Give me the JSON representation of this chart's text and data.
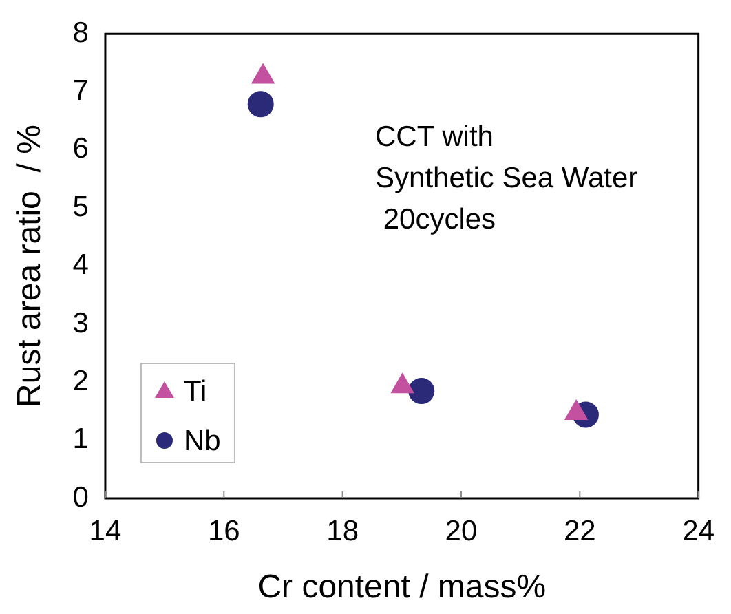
{
  "chart_data": {
    "type": "scatter",
    "xlabel": "Cr content / mass%",
    "ylabel": "Rust area ratio  / %",
    "series": [
      {
        "name": "Ti",
        "color": "#c450a0",
        "marker": "triangle",
        "x": [
          16.66,
          19.01,
          21.94
        ],
        "values": [
          7.26,
          1.93,
          1.47
        ]
      },
      {
        "name": "Nb",
        "color": "#2b2a78",
        "marker": "circle",
        "x": [
          16.62,
          19.33,
          22.1
        ],
        "values": [
          6.79,
          1.85,
          1.44
        ]
      }
    ],
    "xlim": [
      14,
      24
    ],
    "xticks": [
      14,
      16,
      18,
      20,
      22,
      24
    ],
    "ylim": [
      0,
      8
    ],
    "yticks": [
      0,
      1,
      2,
      3,
      4,
      5,
      6,
      7,
      8
    ],
    "grid": false,
    "legend": "bottom left",
    "annotations": [
      "CCT with",
      "Synthetic Sea Water",
      " 20cycles"
    ]
  }
}
